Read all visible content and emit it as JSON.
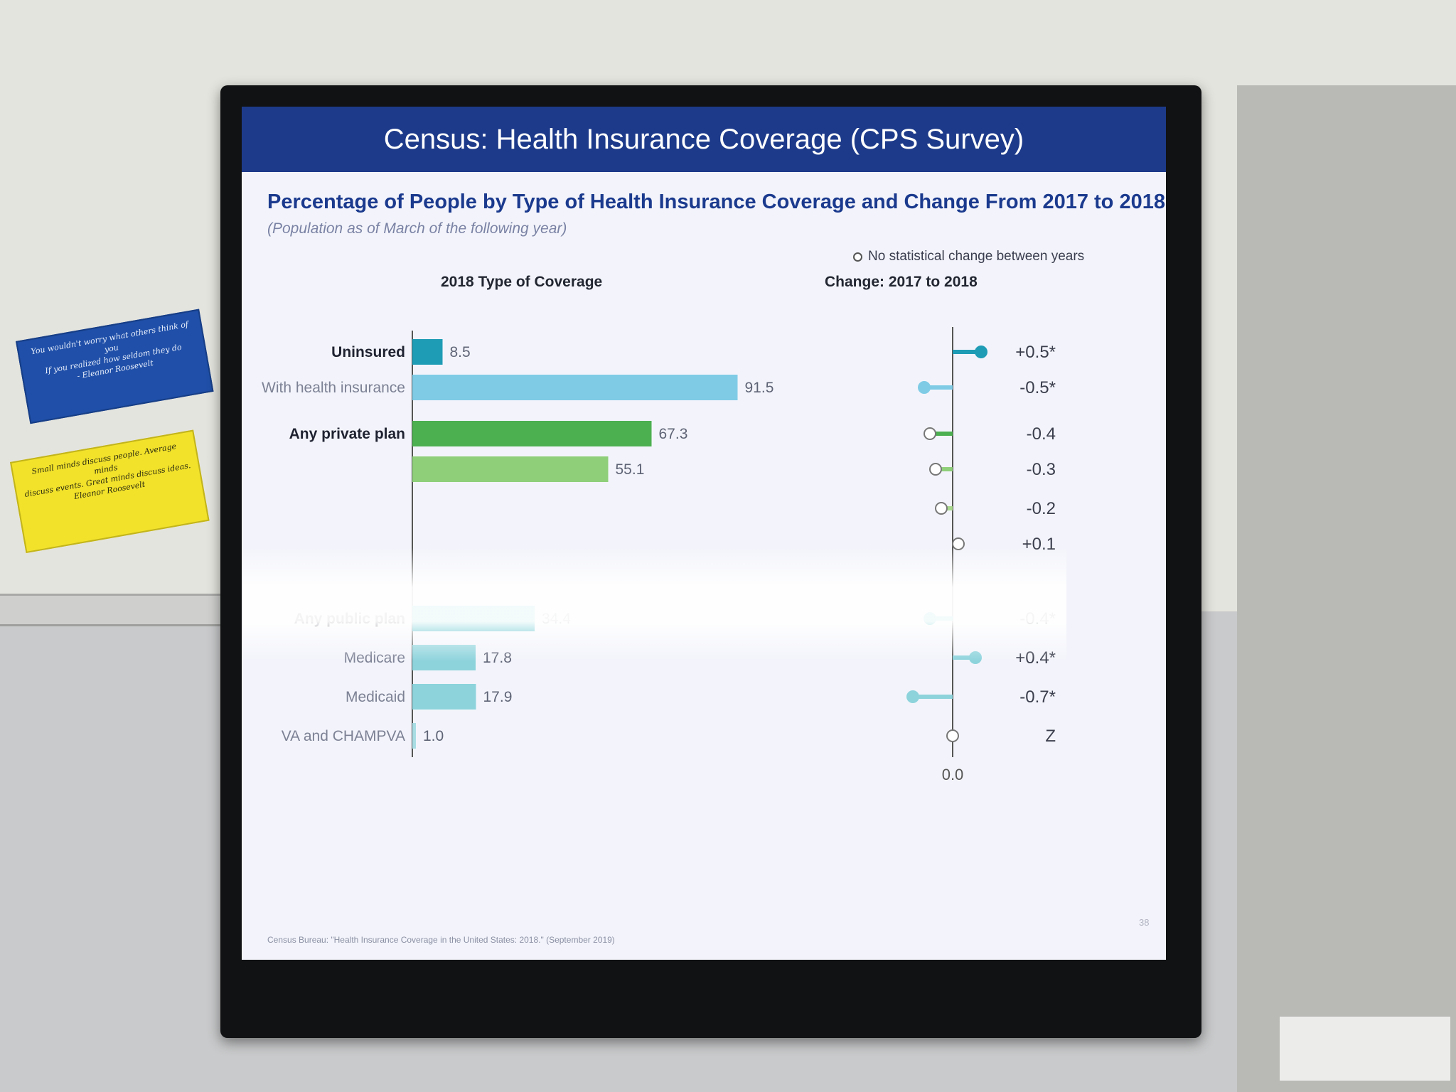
{
  "screen_title": "Census:  Health Insurance Coverage (CPS Survey)",
  "chart_data": {
    "type": "bar",
    "title": "Percentage of People by Type of Health Insurance Coverage and Change From 2017 to 2018",
    "subtitle": "(Population as of March of the following year)",
    "left_panel_title": "2018 Type of Coverage",
    "right_panel_title": "Change: 2017 to 2018",
    "legend": "No statistical change between years",
    "zero_label": "0.0",
    "rows": [
      {
        "label": "Uninsured",
        "value": 8.5,
        "value_label": "8.5",
        "change": 0.5,
        "change_label": "+0.5*",
        "significant": true,
        "bold": true,
        "color": "#1f9cb5"
      },
      {
        "label": "With health insurance",
        "value": 91.5,
        "value_label": "91.5",
        "change": -0.5,
        "change_label": "-0.5*",
        "significant": true,
        "bold": false,
        "color": "#7fcbe6"
      },
      {
        "label": "Any private plan",
        "value": 67.3,
        "value_label": "67.3",
        "change": -0.4,
        "change_label": "-0.4",
        "significant": false,
        "bold": true,
        "color": "#4caf50"
      },
      {
        "label": "",
        "value": 55.1,
        "value_label": "55.1",
        "change": -0.3,
        "change_label": "-0.3",
        "significant": false,
        "bold": false,
        "color": "#8fcf7a"
      },
      {
        "label": "",
        "value": null,
        "value_label": "",
        "change": -0.2,
        "change_label": "-0.2",
        "significant": false,
        "bold": false,
        "color": "#a9d98d"
      },
      {
        "label": "",
        "value": null,
        "value_label": "",
        "change": 0.1,
        "change_label": "+0.1",
        "significant": false,
        "bold": false,
        "color": "#a9d98d"
      },
      {
        "label": "Any public plan",
        "value": 34.4,
        "value_label": "34.4",
        "change": -0.4,
        "change_label": "-0.4*",
        "significant": true,
        "bold": true,
        "color": "#1aaab8"
      },
      {
        "label": "Medicare",
        "value": 17.8,
        "value_label": "17.8",
        "change": 0.4,
        "change_label": "+0.4*",
        "significant": true,
        "bold": false,
        "color": "#8dd3dc"
      },
      {
        "label": "Medicaid",
        "value": 17.9,
        "value_label": "17.9",
        "change": -0.7,
        "change_label": "-0.7*",
        "significant": true,
        "bold": false,
        "color": "#8dd3dc"
      },
      {
        "label": "VA and CHAMPVA",
        "value": 1.0,
        "value_label": "1.0",
        "change": 0.0,
        "change_label": "Z",
        "significant": false,
        "bold": false,
        "color": "#a8dde4"
      }
    ]
  },
  "source": "Census Bureau: \"Health Insurance Coverage in the United States: 2018.\" (September 2019)",
  "page_number": "38",
  "posters": {
    "blue_lines": [
      "You wouldn't worry what others think of you",
      "If you realized how seldom they do",
      "- Eleanor Roosevelt"
    ],
    "yellow_lines": [
      "Small minds discuss people. Average minds",
      "discuss events. Great minds discuss ideas.",
      "Eleanor Roosevelt"
    ]
  }
}
